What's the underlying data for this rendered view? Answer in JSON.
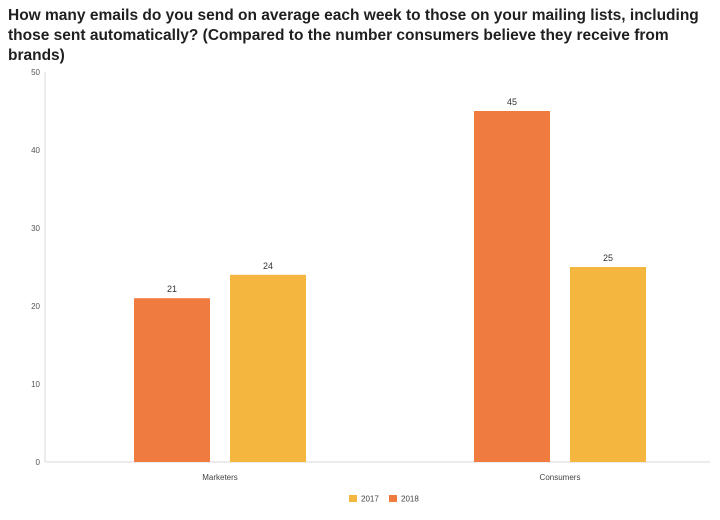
{
  "chart_data": {
    "type": "bar",
    "title": "How many emails do you send on average each week to those on your mailing lists, including those sent automatically? (Compared to the number consumers believe they receive from brands)",
    "categories": [
      "Marketers",
      "Consumers"
    ],
    "series": [
      {
        "name": "2018",
        "color": "#f07b3f",
        "values": [
          21,
          45
        ]
      },
      {
        "name": "2017",
        "color": "#f4b63f",
        "values": [
          24,
          25
        ]
      }
    ],
    "legend_order": [
      "2017",
      "2018"
    ],
    "ylim": [
      0,
      50
    ],
    "yticks": [
      0,
      10,
      20,
      30,
      40,
      50
    ],
    "xlabel": "",
    "ylabel": "",
    "grid": false,
    "legend_position": "bottom-center"
  }
}
